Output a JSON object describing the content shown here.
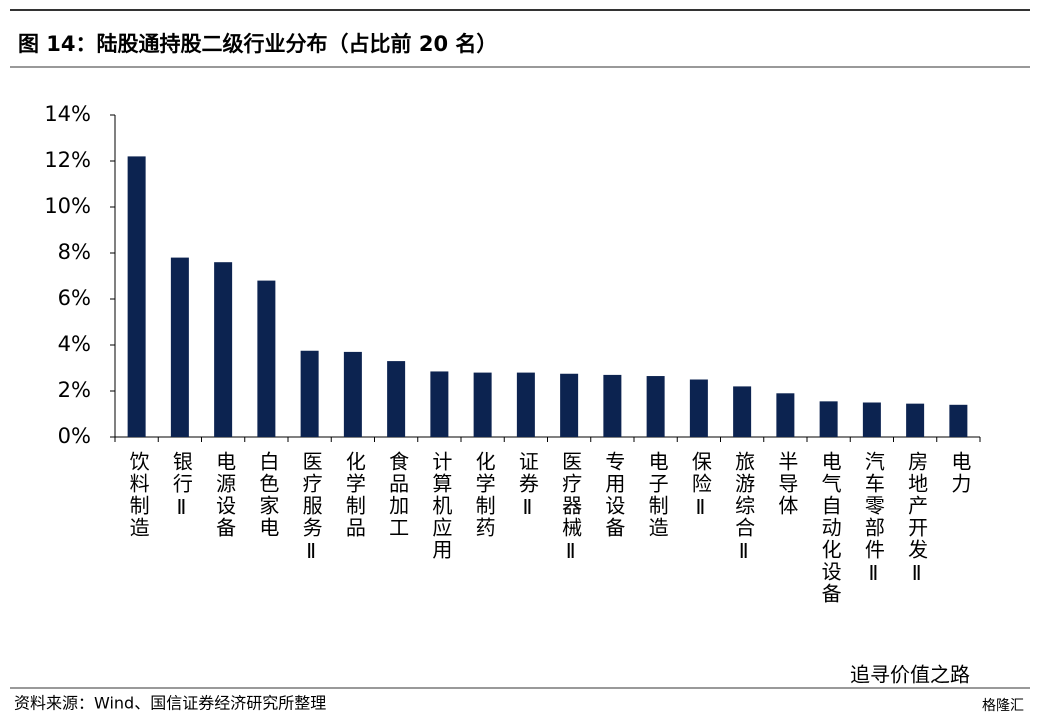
{
  "chart_data": {
    "type": "bar",
    "title": "图 14：陆股通持股二级行业分布（占比前 20 名）",
    "source": "资料来源：Wind、国信证券经济研究所整理",
    "watermark": "追寻价值之路",
    "logo": "格隆汇",
    "categories": [
      "饮料制造",
      "银行Ⅱ",
      "电源设备",
      "白色家电",
      "医疗服务Ⅱ",
      "化学制品",
      "食品加工",
      "计算机应用",
      "化学制药",
      "证券Ⅱ",
      "医疗器械Ⅱ",
      "专用设备",
      "电子制造",
      "保险Ⅱ",
      "旅游综合Ⅱ",
      "半导体",
      "电气自动化设备",
      "汽车零部件Ⅱ",
      "房地产开发Ⅱ",
      "电力"
    ],
    "values": [
      12.2,
      7.8,
      7.6,
      6.8,
      3.75,
      3.7,
      3.3,
      2.85,
      2.8,
      2.8,
      2.75,
      2.7,
      2.65,
      2.5,
      2.2,
      1.9,
      1.55,
      1.5,
      1.45,
      1.4
    ],
    "color": "#0c2350",
    "ylim": [
      0,
      14
    ],
    "yticks": [
      {
        "value": 0,
        "label": "0%"
      },
      {
        "value": 2,
        "label": "2%"
      },
      {
        "value": 4,
        "label": "4%"
      },
      {
        "value": 6,
        "label": "6%"
      },
      {
        "value": 8,
        "label": "8%"
      },
      {
        "value": 10,
        "label": "10%"
      },
      {
        "value": 12,
        "label": "12%"
      },
      {
        "value": 14,
        "label": "14%"
      }
    ],
    "grid": false
  }
}
